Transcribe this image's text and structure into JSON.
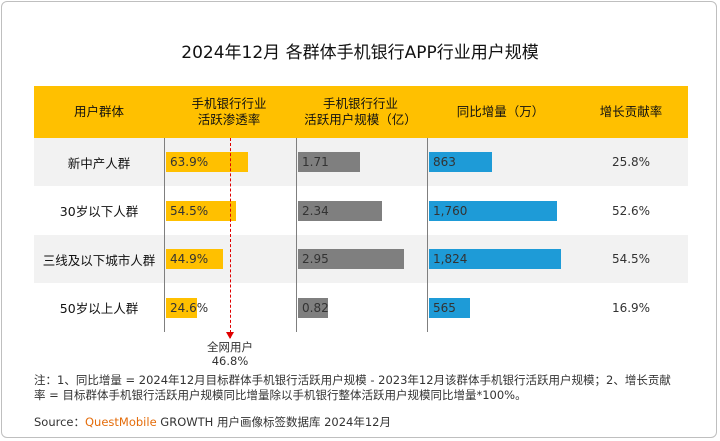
{
  "title": "2024年12月 各群体手机银行APP行业用户规模",
  "headers": [
    "用户群体",
    "手机银行行业\n活跃渗透率",
    "手机银行行业\n活跃用户规模（亿）",
    "同比增量（万）",
    "增长贡献率"
  ],
  "colors": {
    "header": "#FFC000",
    "penetration": "#FFC000",
    "users": "#7f7f7f",
    "increment": "#1E9BD7",
    "reference": "#e00000"
  },
  "chart_data": {
    "type": "table",
    "categories": [
      "新中产人群",
      "30岁以下人群",
      "三线及以下城市人群",
      "50岁以上人群"
    ],
    "series": [
      {
        "name": "手机银行行业活跃渗透率",
        "values": [
          63.9,
          54.5,
          44.9,
          24.6
        ],
        "labels": [
          "63.9%",
          "54.5%",
          "44.9%",
          "24.6%"
        ]
      },
      {
        "name": "手机银行行业活跃用户规模（亿）",
        "values": [
          1.71,
          2.34,
          2.95,
          0.82
        ],
        "labels": [
          "1.71",
          "2.34",
          "2.95",
          "0.82"
        ]
      },
      {
        "name": "同比增量（万）",
        "values": [
          863,
          1760,
          1824,
          565
        ],
        "labels": [
          "863",
          "1,760",
          "1,824",
          "565"
        ]
      },
      {
        "name": "增长贡献率",
        "values": [
          25.8,
          52.6,
          54.5,
          16.9
        ],
        "labels": [
          "25.8%",
          "52.6%",
          "54.5%",
          "16.9%"
        ]
      }
    ],
    "reference": {
      "label_line1": "全网用户",
      "label_line2": "46.8%",
      "value": 46.8
    }
  },
  "note_line1": "注：1、同比增量 = 2024年12月目标群体手机银行活跃用户规模 - 2023年12月该群体手机银行活跃用户规模；2、增长贡献",
  "note_line2": "率 = 目标群体手机银行活跃用户规模同比增量除以手机银行整体活跃用户规模同比增量*100%。",
  "source_prefix": "Source：",
  "source_brand": "QuestMobile",
  "source_rest": " GROWTH 用户画像标签数据库 2024年12月"
}
